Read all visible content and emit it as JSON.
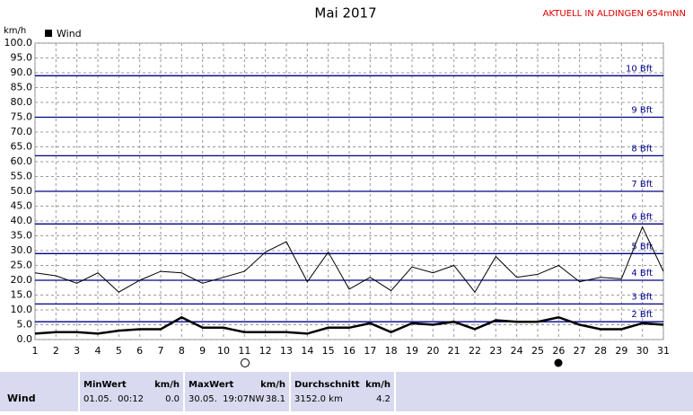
{
  "chart_data": {
    "type": "line",
    "title": "Mai 2017",
    "annotation": "AKTUELL IN ALDINGEN 654mNN",
    "y_label": "km/h",
    "categories": [
      "1",
      "2",
      "3",
      "4",
      "5",
      "6",
      "7",
      "8",
      "9",
      "10",
      "11",
      "12",
      "13",
      "14",
      "15",
      "16",
      "17",
      "18",
      "19",
      "20",
      "21",
      "22",
      "23",
      "24",
      "25",
      "26",
      "27",
      "28",
      "29",
      "30",
      "31"
    ],
    "series": [
      {
        "name": "Wind",
        "color": "#000000",
        "values": [
          2,
          2.5,
          2.5,
          2,
          3,
          3.5,
          3.5,
          7.5,
          4,
          4,
          2.5,
          2.5,
          2.5,
          2,
          4,
          4,
          5.5,
          2.5,
          5.5,
          5,
          6,
          3.5,
          6.5,
          6,
          6,
          7.5,
          5,
          3.5,
          3.5,
          5.5,
          5
        ]
      },
      {
        "color": "#000000",
        "values": [
          22.5,
          21.5,
          19,
          22.5,
          16,
          20,
          23,
          22.5,
          19,
          21,
          23,
          29.5,
          33,
          19.5,
          29.5,
          17,
          21,
          16.5,
          24.5,
          22.5,
          25,
          16,
          28,
          21,
          22,
          25,
          19.5,
          21,
          20.5,
          38,
          23
        ]
      }
    ],
    "ylim": [
      0,
      100
    ],
    "yticks": [
      {
        "value": 0,
        "label": "0.0"
      },
      {
        "value": 5,
        "label": "5.0"
      },
      {
        "value": 10,
        "label": "10.0"
      },
      {
        "value": 15,
        "label": "15.0"
      },
      {
        "value": 20,
        "label": "20.0"
      },
      {
        "value": 25,
        "label": "25.0"
      },
      {
        "value": 30,
        "label": "30.0"
      },
      {
        "value": 35,
        "label": "35.0"
      },
      {
        "value": 40,
        "label": "40.0"
      },
      {
        "value": 45,
        "label": "45.0"
      },
      {
        "value": 50,
        "label": "50.0"
      },
      {
        "value": 55,
        "label": "55.0"
      },
      {
        "value": 60,
        "label": "60.0"
      },
      {
        "value": 65,
        "label": "65.0"
      },
      {
        "value": 70,
        "label": "70.0"
      },
      {
        "value": 75,
        "label": "75.0"
      },
      {
        "value": 80,
        "label": "80.0"
      },
      {
        "value": 85,
        "label": "85.0"
      },
      {
        "value": 90,
        "label": "90.0"
      },
      {
        "value": 95,
        "label": "95.0"
      },
      {
        "value": 100,
        "label": "100.0"
      }
    ],
    "grid": true,
    "bft_color": "#00008b",
    "bft_lines": [
      {
        "value": 6,
        "label": "2 Bft"
      },
      {
        "value": 12,
        "label": "3 Bft"
      },
      {
        "value": 20,
        "label": "4 Bft"
      },
      {
        "value": 29,
        "label": "5 Bft"
      },
      {
        "value": 39,
        "label": "6 Bft"
      },
      {
        "value": 50,
        "label": "7 Bft"
      },
      {
        "value": 62,
        "label": "8 Bft"
      },
      {
        "value": 75,
        "label": "9 Bft"
      },
      {
        "value": 89,
        "label": "10 Bft"
      }
    ]
  },
  "stats": {
    "row_label": "Wind",
    "columns": [
      {
        "header": "MinWert",
        "unit": "km/h",
        "when": "01.05.  00:12",
        "value": "0.0"
      },
      {
        "header": "MaxWert",
        "unit": "km/h",
        "when": "30.05.  19:07NW",
        "value": "38.1"
      },
      {
        "header": "Durchschnitt",
        "unit": "km/h",
        "when": "3152.0 km",
        "value": "4.2"
      }
    ]
  }
}
